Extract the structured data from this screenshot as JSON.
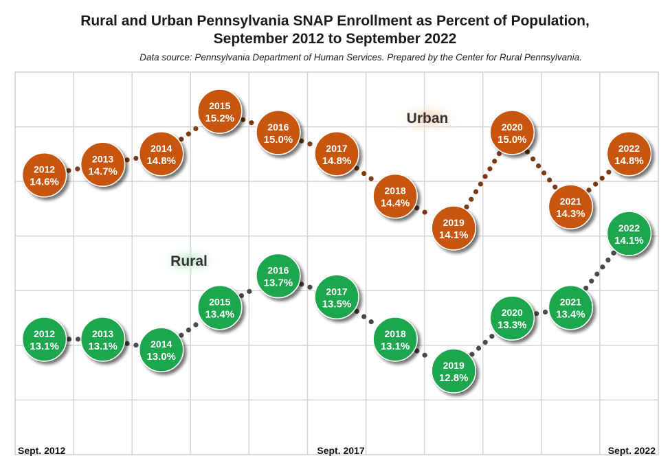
{
  "chart_data": {
    "type": "line",
    "title_line1": "Rural and Urban Pennsylvania SNAP Enrollment as Percent of Population,",
    "title_line2": "September 2012 to September 2022",
    "subtitle": "Data source: Pennsylvania Department of Human Services. Prepared by the Center for Rural Pennsylvania.",
    "categories": [
      "2012",
      "2013",
      "2014",
      "2015",
      "2016",
      "2017",
      "2018",
      "2019",
      "2020",
      "2021",
      "2022"
    ],
    "x_tick_labels": [
      "Sept. 2012",
      "Sept. 2017",
      "Sept. 2022"
    ],
    "grid": true,
    "series": [
      {
        "name": "Urban",
        "color": "#c8550f",
        "values": [
          14.6,
          14.7,
          14.8,
          15.2,
          15.0,
          14.8,
          14.4,
          14.1,
          15.0,
          14.3,
          14.8
        ],
        "labels": [
          "14.6%",
          "14.7%",
          "14.8%",
          "15.2%",
          "15.0%",
          "14.8%",
          "14.4%",
          "14.1%",
          "15.0%",
          "14.3%",
          "14.8%"
        ]
      },
      {
        "name": "Rural",
        "color": "#1fa64e",
        "values": [
          13.1,
          13.1,
          13.0,
          13.4,
          13.7,
          13.5,
          13.1,
          12.8,
          13.3,
          13.4,
          14.1
        ],
        "labels": [
          "13.1%",
          "13.1%",
          "13.0%",
          "13.4%",
          "13.7%",
          "13.5%",
          "13.1%",
          "12.8%",
          "13.3%",
          "13.4%",
          "14.1%"
        ]
      }
    ]
  }
}
